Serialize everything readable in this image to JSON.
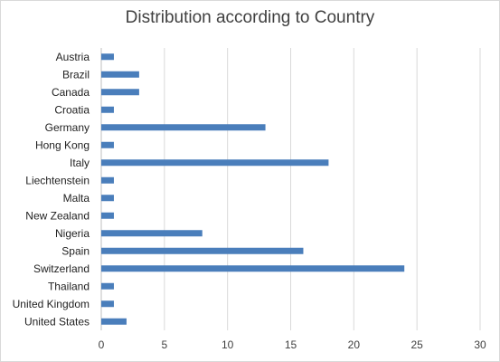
{
  "chart_data": {
    "type": "bar",
    "orientation": "horizontal",
    "title": "Distribution according to Country",
    "xlabel": "",
    "ylabel": "",
    "categories": [
      "Austria",
      "Brazil",
      "Canada",
      "Croatia",
      "Germany",
      "Hong Kong",
      "Italy",
      "Liechtenstein",
      "Malta",
      "New Zealand",
      "Nigeria",
      "Spain",
      "Switzerland",
      "Thailand",
      "United Kingdom",
      "United States"
    ],
    "values": [
      1,
      3,
      3,
      1,
      13,
      1,
      18,
      1,
      1,
      1,
      8,
      16,
      24,
      1,
      1,
      2
    ],
    "xlim": [
      0,
      30
    ],
    "xticks": [
      0,
      5,
      10,
      15,
      20,
      25,
      30
    ],
    "grid": "vertical",
    "legend": "none",
    "bar_color": "#4a7ebb",
    "grid_color": "#d9d9d9"
  }
}
